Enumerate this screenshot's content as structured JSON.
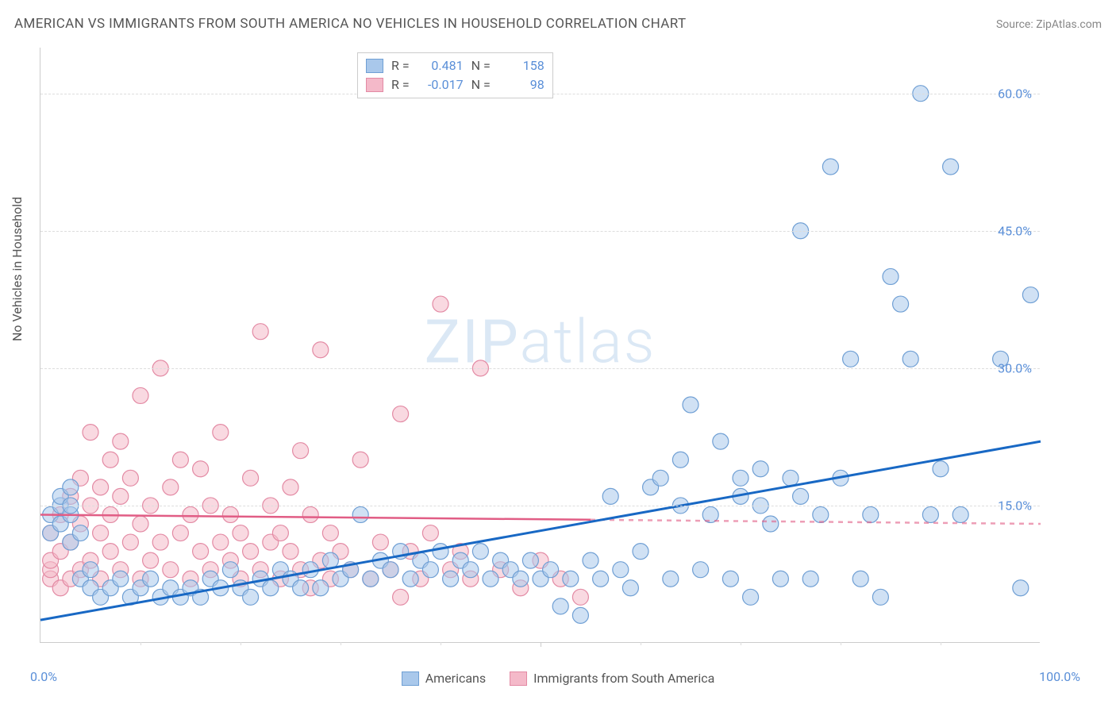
{
  "header": {
    "title": "AMERICAN VS IMMIGRANTS FROM SOUTH AMERICA NO VEHICLES IN HOUSEHOLD CORRELATION CHART",
    "source_prefix": "Source: ",
    "source": "ZipAtlas.com"
  },
  "y_axis": {
    "label": "No Vehicles in Household",
    "ticks": [
      15.0,
      30.0,
      45.0,
      60.0
    ],
    "tick_labels": [
      "15.0%",
      "30.0%",
      "45.0%",
      "60.0%"
    ],
    "min": 0.0,
    "max": 65.0
  },
  "x_axis": {
    "min": 0.0,
    "max": 100.0,
    "label_start": "0.0%",
    "label_end": "100.0%",
    "minor_ticks": [
      10,
      20,
      30,
      40,
      50,
      60,
      70,
      80,
      90
    ],
    "major_ticks": [
      50
    ]
  },
  "watermark": {
    "zip": "ZIP",
    "atlas": "atlas"
  },
  "series": {
    "americans": {
      "label": "Americans",
      "fill": "#a9c8eb",
      "stroke": "#6f9fd4",
      "fill_opacity": 0.55,
      "trend_color": "#1868c4",
      "trend_width": 3,
      "stats": {
        "R": "0.481",
        "N": "158"
      },
      "trend": {
        "y_at_x0": 2.5,
        "y_at_x100": 22.0
      },
      "points": [
        [
          1,
          12
        ],
        [
          1,
          14
        ],
        [
          2,
          13
        ],
        [
          2,
          15
        ],
        [
          2,
          16
        ],
        [
          3,
          11
        ],
        [
          3,
          14
        ],
        [
          3,
          15
        ],
        [
          3,
          17
        ],
        [
          4,
          12
        ],
        [
          4,
          7
        ],
        [
          5,
          6
        ],
        [
          5,
          8
        ],
        [
          6,
          5
        ],
        [
          7,
          6
        ],
        [
          8,
          7
        ],
        [
          9,
          5
        ],
        [
          10,
          6
        ],
        [
          11,
          7
        ],
        [
          12,
          5
        ],
        [
          13,
          6
        ],
        [
          14,
          5
        ],
        [
          15,
          6
        ],
        [
          16,
          5
        ],
        [
          17,
          7
        ],
        [
          18,
          6
        ],
        [
          19,
          8
        ],
        [
          20,
          6
        ],
        [
          21,
          5
        ],
        [
          22,
          7
        ],
        [
          23,
          6
        ],
        [
          24,
          8
        ],
        [
          25,
          7
        ],
        [
          26,
          6
        ],
        [
          27,
          8
        ],
        [
          28,
          6
        ],
        [
          29,
          9
        ],
        [
          30,
          7
        ],
        [
          31,
          8
        ],
        [
          32,
          14
        ],
        [
          33,
          7
        ],
        [
          34,
          9
        ],
        [
          35,
          8
        ],
        [
          36,
          10
        ],
        [
          37,
          7
        ],
        [
          38,
          9
        ],
        [
          39,
          8
        ],
        [
          40,
          10
        ],
        [
          41,
          7
        ],
        [
          42,
          9
        ],
        [
          43,
          8
        ],
        [
          44,
          10
        ],
        [
          45,
          7
        ],
        [
          46,
          9
        ],
        [
          47,
          8
        ],
        [
          48,
          7
        ],
        [
          49,
          9
        ],
        [
          50,
          7
        ],
        [
          51,
          8
        ],
        [
          52,
          4
        ],
        [
          53,
          7
        ],
        [
          54,
          3
        ],
        [
          55,
          9
        ],
        [
          56,
          7
        ],
        [
          57,
          16
        ],
        [
          58,
          8
        ],
        [
          59,
          6
        ],
        [
          60,
          10
        ],
        [
          61,
          17
        ],
        [
          62,
          18
        ],
        [
          63,
          7
        ],
        [
          64,
          15
        ],
        [
          64,
          20
        ],
        [
          65,
          26
        ],
        [
          66,
          8
        ],
        [
          67,
          14
        ],
        [
          68,
          22
        ],
        [
          69,
          7
        ],
        [
          70,
          16
        ],
        [
          70,
          18
        ],
        [
          71,
          5
        ],
        [
          72,
          15
        ],
        [
          72,
          19
        ],
        [
          73,
          13
        ],
        [
          74,
          7
        ],
        [
          75,
          18
        ],
        [
          76,
          16
        ],
        [
          76,
          45
        ],
        [
          77,
          7
        ],
        [
          78,
          14
        ],
        [
          79,
          52
        ],
        [
          80,
          18
        ],
        [
          81,
          31
        ],
        [
          82,
          7
        ],
        [
          83,
          14
        ],
        [
          84,
          5
        ],
        [
          85,
          40
        ],
        [
          86,
          37
        ],
        [
          87,
          31
        ],
        [
          88,
          60
        ],
        [
          89,
          14
        ],
        [
          90,
          19
        ],
        [
          91,
          52
        ],
        [
          92,
          14
        ],
        [
          96,
          31
        ],
        [
          98,
          6
        ],
        [
          99,
          38
        ]
      ]
    },
    "immigrants": {
      "label": "Immigrants from South America",
      "fill": "#f4b9c9",
      "stroke": "#e38aa4",
      "fill_opacity": 0.55,
      "trend_color": "#e15d85",
      "trend_width": 2.5,
      "stats": {
        "R": "-0.017",
        "N": "98"
      },
      "trend": {
        "y_at_x0": 14.0,
        "y_at_x100": 13.0,
        "dash_after_x": 55
      },
      "points": [
        [
          1,
          7
        ],
        [
          1,
          8
        ],
        [
          1,
          9
        ],
        [
          1,
          12
        ],
        [
          2,
          6
        ],
        [
          2,
          10
        ],
        [
          2,
          14
        ],
        [
          3,
          7
        ],
        [
          3,
          11
        ],
        [
          3,
          16
        ],
        [
          4,
          8
        ],
        [
          4,
          13
        ],
        [
          4,
          18
        ],
        [
          5,
          9
        ],
        [
          5,
          15
        ],
        [
          5,
          23
        ],
        [
          6,
          7
        ],
        [
          6,
          12
        ],
        [
          6,
          17
        ],
        [
          7,
          10
        ],
        [
          7,
          14
        ],
        [
          7,
          20
        ],
        [
          8,
          8
        ],
        [
          8,
          16
        ],
        [
          8,
          22
        ],
        [
          9,
          11
        ],
        [
          9,
          18
        ],
        [
          10,
          7
        ],
        [
          10,
          13
        ],
        [
          10,
          27
        ],
        [
          11,
          9
        ],
        [
          11,
          15
        ],
        [
          12,
          11
        ],
        [
          12,
          30
        ],
        [
          13,
          8
        ],
        [
          13,
          17
        ],
        [
          14,
          12
        ],
        [
          14,
          20
        ],
        [
          15,
          7
        ],
        [
          15,
          14
        ],
        [
          16,
          10
        ],
        [
          16,
          19
        ],
        [
          17,
          8
        ],
        [
          17,
          15
        ],
        [
          18,
          11
        ],
        [
          18,
          23
        ],
        [
          19,
          9
        ],
        [
          19,
          14
        ],
        [
          20,
          7
        ],
        [
          20,
          12
        ],
        [
          21,
          10
        ],
        [
          21,
          18
        ],
        [
          22,
          8
        ],
        [
          22,
          34
        ],
        [
          23,
          11
        ],
        [
          23,
          15
        ],
        [
          24,
          7
        ],
        [
          24,
          12
        ],
        [
          25,
          10
        ],
        [
          25,
          17
        ],
        [
          26,
          8
        ],
        [
          26,
          21
        ],
        [
          27,
          6
        ],
        [
          27,
          14
        ],
        [
          28,
          9
        ],
        [
          28,
          32
        ],
        [
          29,
          7
        ],
        [
          29,
          12
        ],
        [
          30,
          10
        ],
        [
          31,
          8
        ],
        [
          32,
          20
        ],
        [
          33,
          7
        ],
        [
          34,
          11
        ],
        [
          35,
          8
        ],
        [
          36,
          25
        ],
        [
          36,
          5
        ],
        [
          37,
          10
        ],
        [
          38,
          7
        ],
        [
          39,
          12
        ],
        [
          40,
          37
        ],
        [
          41,
          8
        ],
        [
          42,
          10
        ],
        [
          43,
          7
        ],
        [
          44,
          30
        ],
        [
          46,
          8
        ],
        [
          48,
          6
        ],
        [
          50,
          9
        ],
        [
          52,
          7
        ],
        [
          54,
          5
        ]
      ]
    }
  },
  "legend_labels": {
    "R": "R =",
    "N": "N =",
    "americans": "Americans",
    "immigrants": "Immigrants from South America"
  },
  "style": {
    "bg": "#ffffff",
    "grid_color": "#dddddd",
    "border_color": "#cccccc",
    "tick_label_color": "#5a8fd8",
    "axis_label_color": "#555555",
    "title_color": "#555555",
    "marker_radius": 10
  }
}
